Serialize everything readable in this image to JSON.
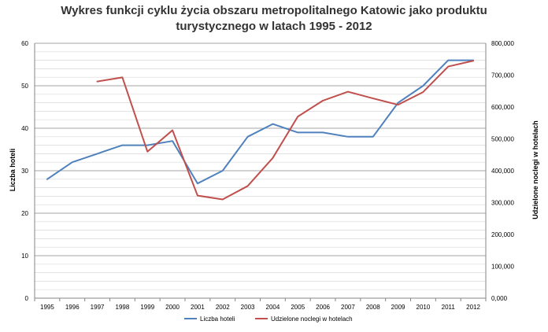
{
  "chart_data": {
    "type": "line",
    "title_line1": "Wykres funkcji cyklu życia obszaru metropolitalnego Katowic jako produktu",
    "title_line2": "turystycznego w latach 1995 - 2012",
    "ylabel_left": "Liczba hoteli",
    "ylabel_right": "Udzielone noclegi w hotelach",
    "x": [
      "1995",
      "1996",
      "1997",
      "1998",
      "1999",
      "2000",
      "2001",
      "2002",
      "2003",
      "2004",
      "2005",
      "2006",
      "2007",
      "2008",
      "2009",
      "2010",
      "2011",
      "2012"
    ],
    "ylim_left": [
      0,
      60
    ],
    "ylim_right": [
      0,
      800000
    ],
    "yticks_left": [
      "0",
      "10",
      "20",
      "30",
      "40",
      "50",
      "60"
    ],
    "yticks_right": [
      "0,000",
      "100,000",
      "200,000",
      "300,000",
      "400,000",
      "500,000",
      "600,000",
      "700,000",
      "800,000"
    ],
    "grid": true,
    "legend_position": "bottom",
    "series": [
      {
        "name": "Liczba hoteli",
        "axis": "left",
        "color": "#4F81BD",
        "values": [
          28,
          32,
          34,
          36,
          36,
          37,
          27,
          30,
          38,
          41,
          39,
          39,
          38,
          38,
          46,
          50,
          56,
          56
        ]
      },
      {
        "name": "Udzielone noclegi w hotelach",
        "axis": "right",
        "color": "#C0504D",
        "values": [
          null,
          null,
          680000,
          693000,
          460000,
          527000,
          322000,
          310000,
          352000,
          440000,
          570000,
          620000,
          648000,
          627000,
          607000,
          647000,
          727000,
          745000
        ]
      }
    ]
  }
}
